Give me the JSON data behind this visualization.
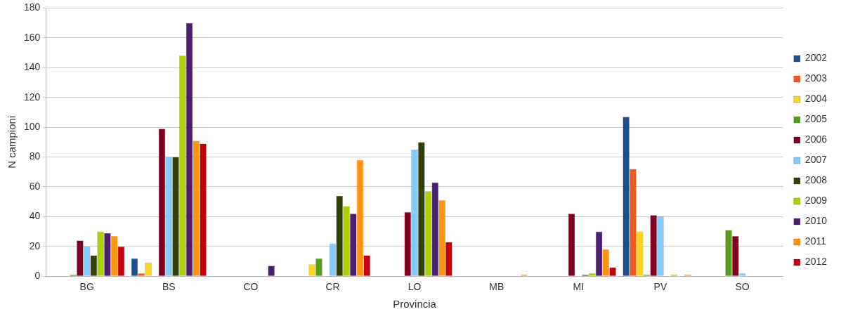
{
  "chart_data": {
    "type": "bar",
    "xlabel": "Provincia",
    "ylabel": "N campioni",
    "categories": [
      "BG",
      "BS",
      "CO",
      "CR",
      "LO",
      "MB",
      "MI",
      "PV",
      "SO"
    ],
    "series": [
      {
        "name": "2002",
        "color": "#1f4e8c",
        "values": [
          0,
          12,
          0,
          0,
          0,
          0,
          0,
          107,
          0
        ]
      },
      {
        "name": "2003",
        "color": "#f05a22",
        "values": [
          0,
          2,
          0,
          0,
          0,
          0,
          0,
          72,
          0
        ]
      },
      {
        "name": "2004",
        "color": "#ffd320",
        "values": [
          0,
          9,
          0,
          8,
          0,
          0,
          0,
          30,
          0
        ]
      },
      {
        "name": "2005",
        "color": "#579d1c",
        "values": [
          1,
          0,
          0,
          12,
          0,
          0,
          0,
          1,
          31
        ]
      },
      {
        "name": "2006",
        "color": "#7e0021",
        "values": [
          24,
          99,
          0,
          0,
          43,
          0,
          42,
          41,
          27
        ]
      },
      {
        "name": "2007",
        "color": "#83caff",
        "values": [
          20,
          80,
          0,
          22,
          85,
          0,
          0,
          40,
          2
        ]
      },
      {
        "name": "2008",
        "color": "#314004",
        "values": [
          14,
          80,
          0,
          54,
          90,
          0,
          1,
          0,
          0
        ]
      },
      {
        "name": "2009",
        "color": "#aecf00",
        "values": [
          30,
          148,
          0,
          47,
          57,
          0,
          2,
          1,
          0
        ]
      },
      {
        "name": "2010",
        "color": "#4b1f6f",
        "values": [
          29,
          170,
          7,
          42,
          63,
          0,
          30,
          0,
          0
        ]
      },
      {
        "name": "2011",
        "color": "#ff950e",
        "values": [
          27,
          91,
          0,
          78,
          51,
          1,
          18,
          1,
          0
        ]
      },
      {
        "name": "2012",
        "color": "#c5000b",
        "values": [
          20,
          89,
          0,
          14,
          23,
          0,
          6,
          0,
          0
        ]
      }
    ],
    "ylim": [
      0,
      180
    ],
    "yticks": [
      0,
      20,
      40,
      60,
      80,
      100,
      120,
      140,
      160,
      180
    ],
    "grid": "y",
    "legend": "right"
  }
}
